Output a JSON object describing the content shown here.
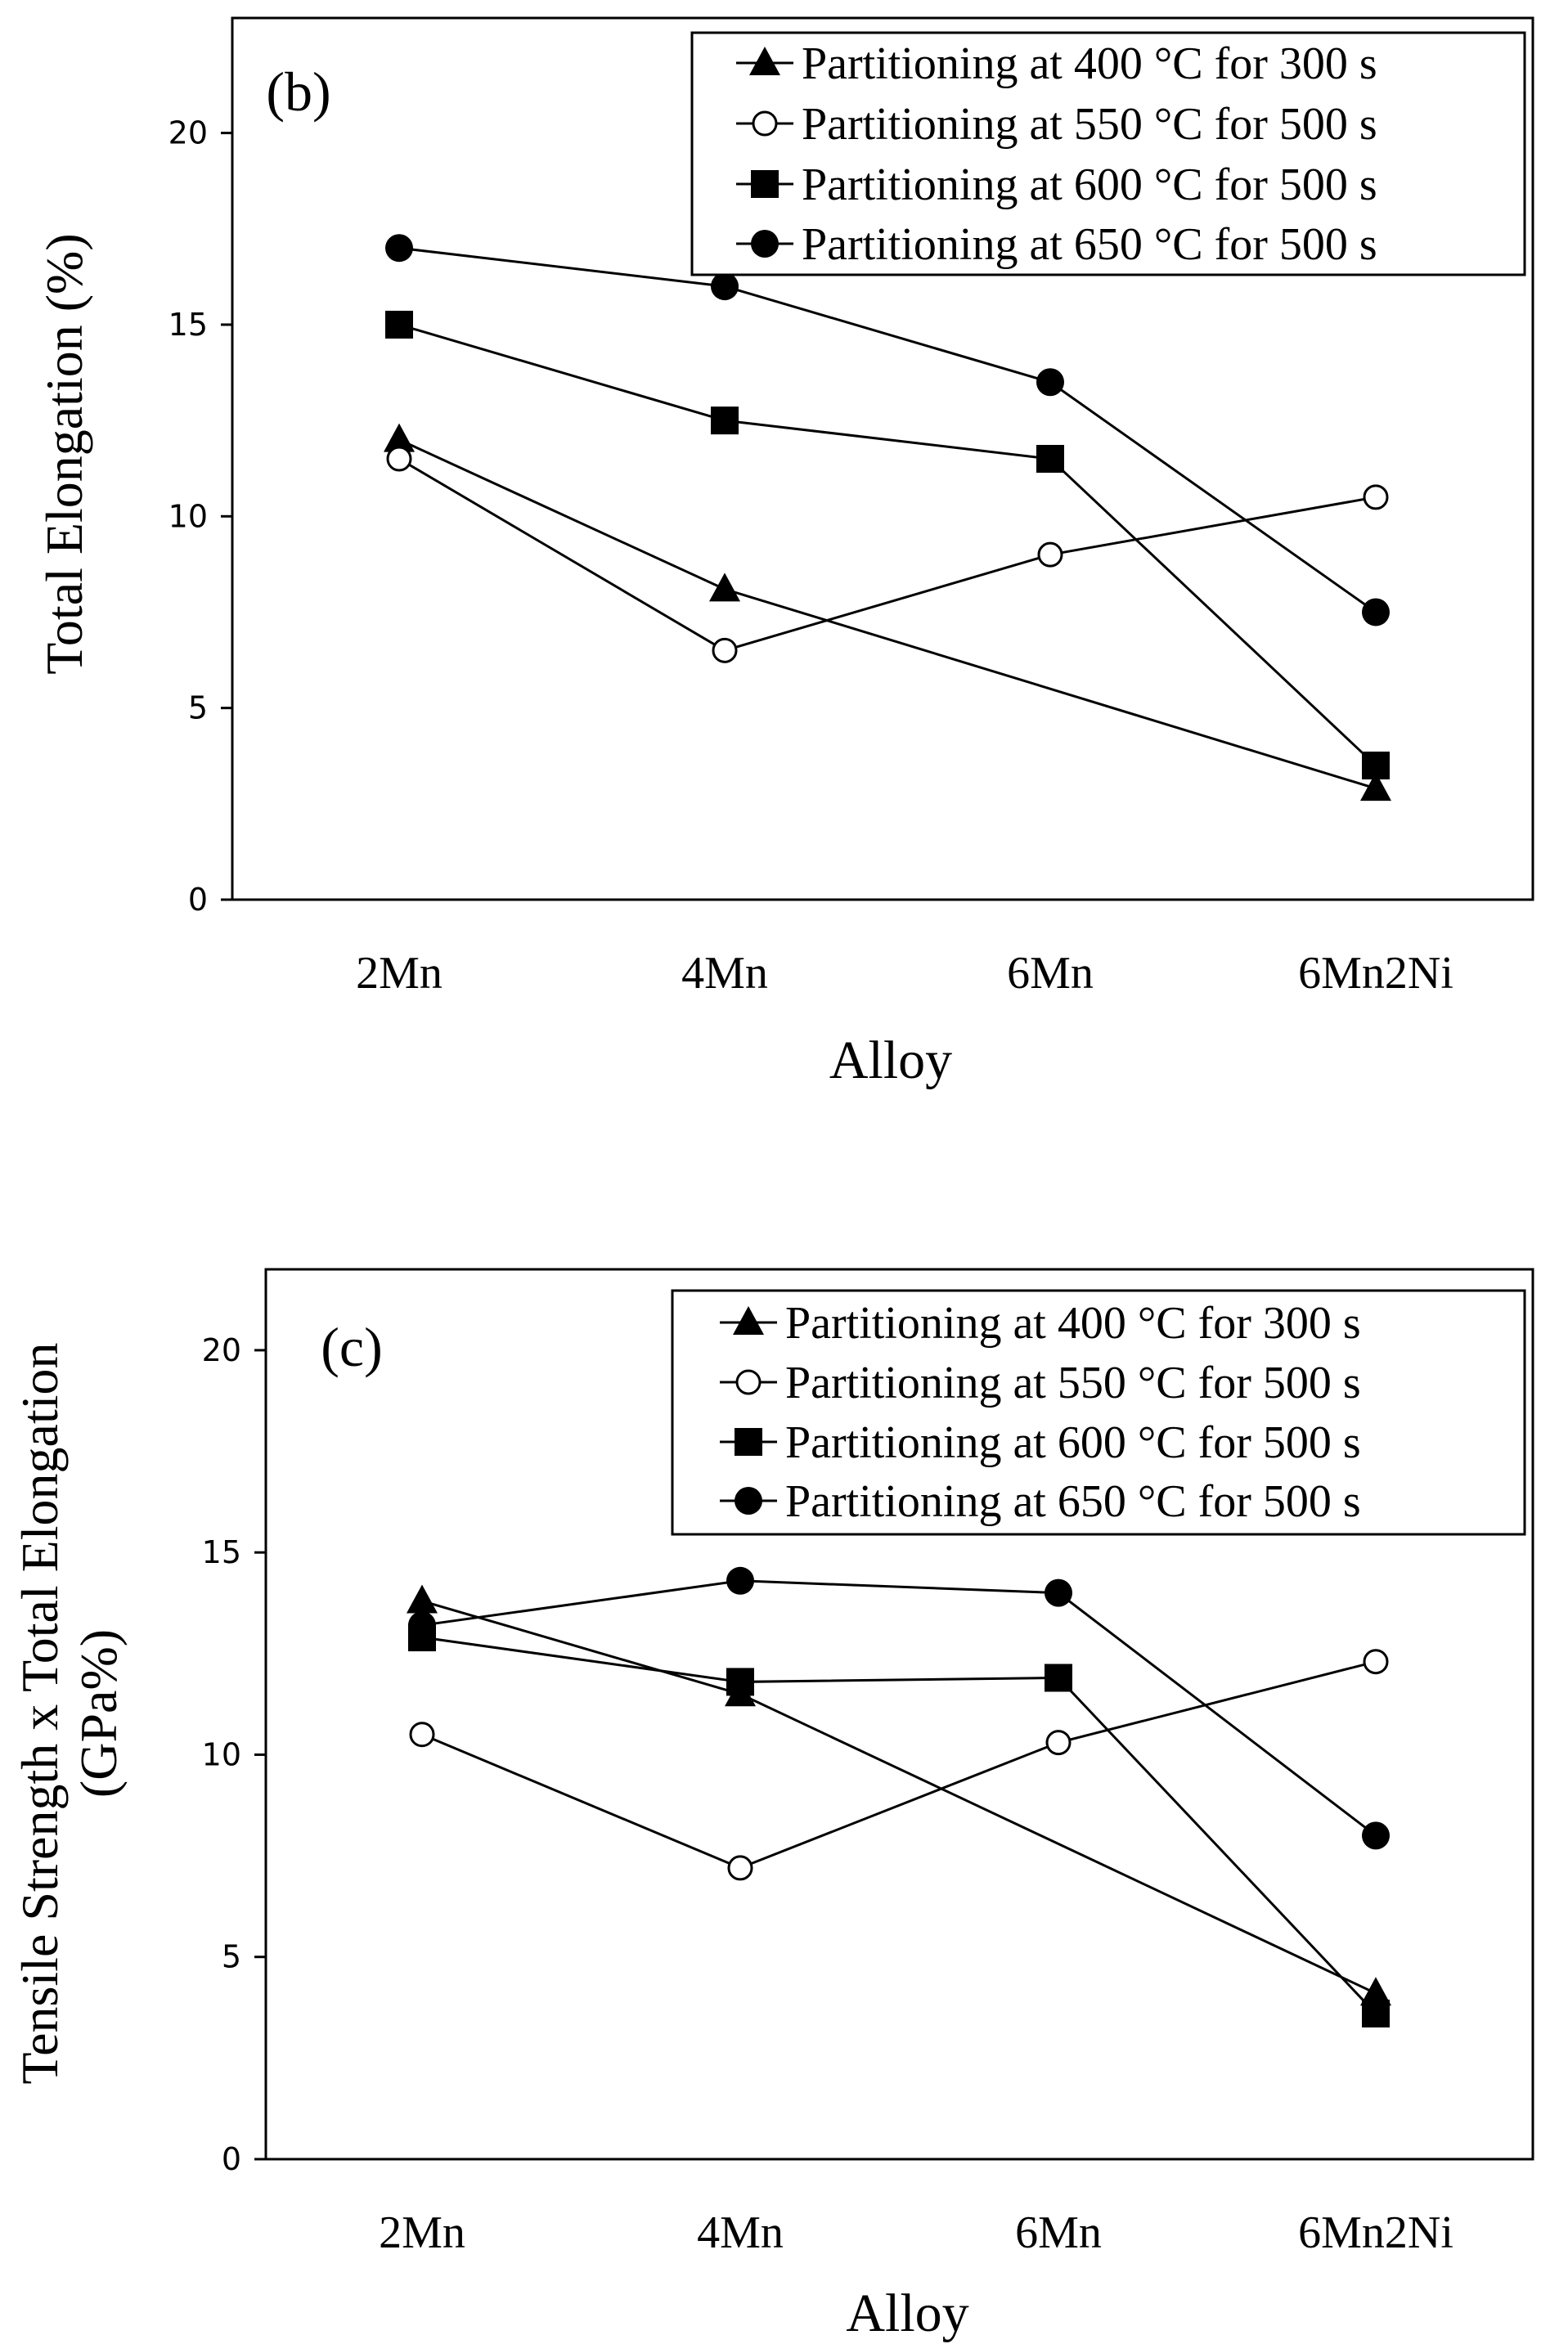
{
  "chart_data": [
    {
      "type": "line",
      "panel_label": "(b)",
      "xlabel": "Alloy",
      "ylabel_lines": [
        "Total Elongation (%)"
      ],
      "categories": [
        "2Mn",
        "4Mn",
        "6Mn",
        "6Mn2Ni"
      ],
      "ylim": [
        0,
        23
      ],
      "yticks": [
        0,
        5,
        10,
        15,
        20
      ],
      "legend_position": "top-right",
      "series": [
        {
          "name": "Partitioning at 400 °C for 300 s",
          "marker": "triangle-filled",
          "values": [
            12.0,
            8.1,
            null,
            2.9
          ]
        },
        {
          "name": "Partitioning at 550 °C for 500 s",
          "marker": "circle-open",
          "values": [
            11.5,
            6.5,
            9.0,
            10.5
          ]
        },
        {
          "name": "Partitioning at 600 °C for 500 s",
          "marker": "square-filled",
          "values": [
            15.0,
            12.5,
            11.5,
            3.5
          ]
        },
        {
          "name": "Partitioning at 650 °C for 500 s",
          "marker": "circle-filled",
          "values": [
            17.0,
            16.0,
            13.5,
            7.5
          ]
        }
      ]
    },
    {
      "type": "line",
      "panel_label": "(c)",
      "xlabel": "Alloy",
      "ylabel_lines": [
        "Tensile Strength x Total Elongation",
        "(GPa%)"
      ],
      "categories": [
        "2Mn",
        "4Mn",
        "6Mn",
        "6Mn2Ni"
      ],
      "ylim": [
        0,
        22
      ],
      "yticks": [
        0,
        5,
        10,
        15,
        20
      ],
      "legend_position": "top-right",
      "series": [
        {
          "name": "Partitioning at 400 °C for 300 s",
          "marker": "triangle-filled",
          "values": [
            13.8,
            11.5,
            null,
            4.1
          ]
        },
        {
          "name": "Partitioning at 550 °C for 500 s",
          "marker": "circle-open",
          "values": [
            10.5,
            7.2,
            10.3,
            12.3
          ]
        },
        {
          "name": "Partitioning at 600 °C for 500 s",
          "marker": "square-filled",
          "values": [
            12.9,
            11.8,
            11.9,
            3.6
          ]
        },
        {
          "name": "Partitioning at 650 °C for 500 s",
          "marker": "circle-filled",
          "values": [
            13.2,
            14.3,
            14.0,
            8.0
          ]
        }
      ]
    }
  ]
}
